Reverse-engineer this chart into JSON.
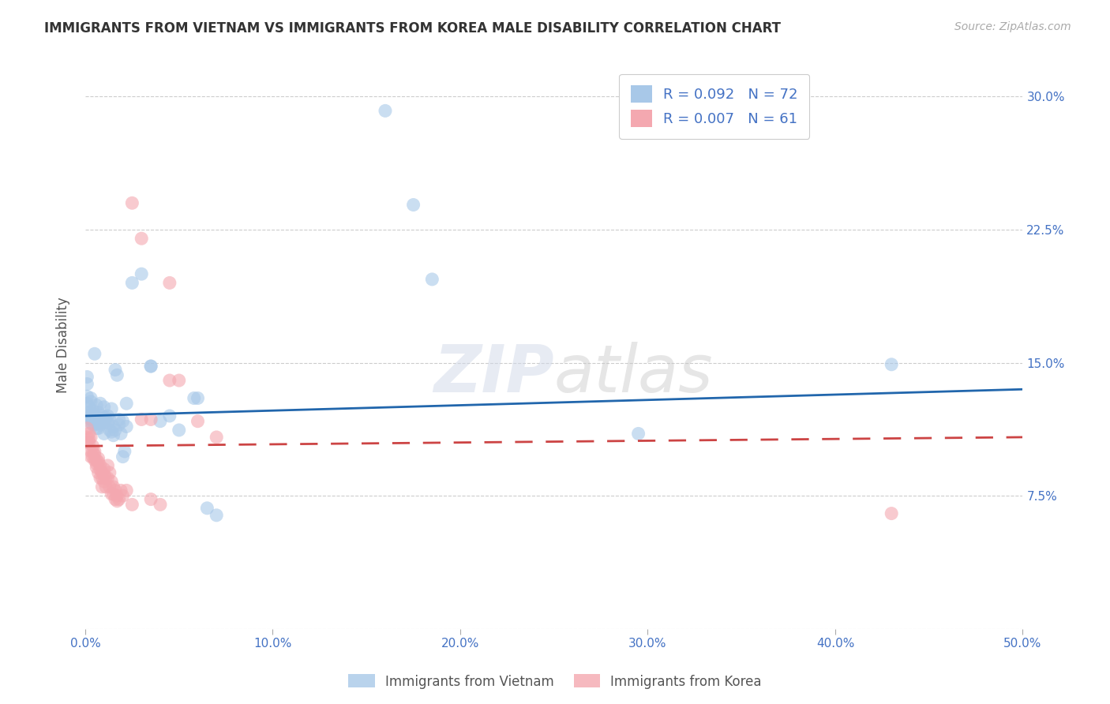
{
  "title": "IMMIGRANTS FROM VIETNAM VS IMMIGRANTS FROM KOREA MALE DISABILITY CORRELATION CHART",
  "source": "Source: ZipAtlas.com",
  "ylabel": "Male Disability",
  "xlabel": "",
  "xlim": [
    0.0,
    0.5
  ],
  "ylim": [
    0.0,
    0.32
  ],
  "xticks": [
    0.0,
    0.1,
    0.2,
    0.3,
    0.4,
    0.5
  ],
  "yticks": [
    0.0,
    0.075,
    0.15,
    0.225,
    0.3
  ],
  "xticklabels": [
    "0.0%",
    "10.0%",
    "20.0%",
    "30.0%",
    "40.0%",
    "50.0%"
  ],
  "yticklabels": [
    "",
    "7.5%",
    "15.0%",
    "22.5%",
    "30.0%"
  ],
  "vietnam_color": "#a8c8e8",
  "korea_color": "#f4a8b0",
  "vietnam_line_color": "#2166ac",
  "korea_line_color": "#cc4444",
  "watermark": "ZIPatlas",
  "vietnam_line_start_y": 0.12,
  "vietnam_line_end_y": 0.135,
  "korea_line_start_y": 0.103,
  "korea_line_end_y": 0.108,
  "vietnam_points": [
    [
      0.001,
      0.131
    ],
    [
      0.001,
      0.127
    ],
    [
      0.001,
      0.138
    ],
    [
      0.001,
      0.142
    ],
    [
      0.002,
      0.12
    ],
    [
      0.002,
      0.125
    ],
    [
      0.002,
      0.119
    ],
    [
      0.002,
      0.122
    ],
    [
      0.003,
      0.13
    ],
    [
      0.003,
      0.118
    ],
    [
      0.003,
      0.116
    ],
    [
      0.003,
      0.128
    ],
    [
      0.004,
      0.123
    ],
    [
      0.004,
      0.115
    ],
    [
      0.004,
      0.118
    ],
    [
      0.004,
      0.121
    ],
    [
      0.005,
      0.119
    ],
    [
      0.005,
      0.155
    ],
    [
      0.005,
      0.12
    ],
    [
      0.005,
      0.115
    ],
    [
      0.006,
      0.126
    ],
    [
      0.006,
      0.118
    ],
    [
      0.006,
      0.113
    ],
    [
      0.006,
      0.117
    ],
    [
      0.007,
      0.122
    ],
    [
      0.007,
      0.113
    ],
    [
      0.007,
      0.119
    ],
    [
      0.008,
      0.116
    ],
    [
      0.008,
      0.127
    ],
    [
      0.008,
      0.115
    ],
    [
      0.009,
      0.12
    ],
    [
      0.009,
      0.117
    ],
    [
      0.01,
      0.11
    ],
    [
      0.01,
      0.118
    ],
    [
      0.01,
      0.125
    ],
    [
      0.011,
      0.119
    ],
    [
      0.011,
      0.117
    ],
    [
      0.012,
      0.116
    ],
    [
      0.012,
      0.12
    ],
    [
      0.013,
      0.112
    ],
    [
      0.013,
      0.118
    ],
    [
      0.014,
      0.111
    ],
    [
      0.014,
      0.124
    ],
    [
      0.015,
      0.114
    ],
    [
      0.015,
      0.109
    ],
    [
      0.016,
      0.112
    ],
    [
      0.016,
      0.146
    ],
    [
      0.017,
      0.143
    ],
    [
      0.018,
      0.118
    ],
    [
      0.018,
      0.115
    ],
    [
      0.019,
      0.11
    ],
    [
      0.02,
      0.117
    ],
    [
      0.02,
      0.097
    ],
    [
      0.021,
      0.1
    ],
    [
      0.022,
      0.114
    ],
    [
      0.022,
      0.127
    ],
    [
      0.025,
      0.195
    ],
    [
      0.03,
      0.2
    ],
    [
      0.035,
      0.148
    ],
    [
      0.035,
      0.148
    ],
    [
      0.04,
      0.117
    ],
    [
      0.045,
      0.12
    ],
    [
      0.05,
      0.112
    ],
    [
      0.058,
      0.13
    ],
    [
      0.06,
      0.13
    ],
    [
      0.065,
      0.068
    ],
    [
      0.07,
      0.064
    ],
    [
      0.16,
      0.292
    ],
    [
      0.175,
      0.239
    ],
    [
      0.185,
      0.197
    ],
    [
      0.295,
      0.11
    ],
    [
      0.43,
      0.149
    ]
  ],
  "korea_points": [
    [
      0.001,
      0.113
    ],
    [
      0.001,
      0.108
    ],
    [
      0.001,
      0.105
    ],
    [
      0.002,
      0.11
    ],
    [
      0.002,
      0.107
    ],
    [
      0.002,
      0.105
    ],
    [
      0.003,
      0.1
    ],
    [
      0.003,
      0.097
    ],
    [
      0.003,
      0.108
    ],
    [
      0.004,
      0.1
    ],
    [
      0.004,
      0.103
    ],
    [
      0.004,
      0.097
    ],
    [
      0.005,
      0.1
    ],
    [
      0.005,
      0.095
    ],
    [
      0.005,
      0.098
    ],
    [
      0.006,
      0.093
    ],
    [
      0.006,
      0.095
    ],
    [
      0.006,
      0.091
    ],
    [
      0.007,
      0.096
    ],
    [
      0.007,
      0.088
    ],
    [
      0.007,
      0.094
    ],
    [
      0.008,
      0.09
    ],
    [
      0.008,
      0.085
    ],
    [
      0.008,
      0.092
    ],
    [
      0.009,
      0.088
    ],
    [
      0.009,
      0.085
    ],
    [
      0.009,
      0.08
    ],
    [
      0.01,
      0.09
    ],
    [
      0.01,
      0.087
    ],
    [
      0.01,
      0.083
    ],
    [
      0.011,
      0.085
    ],
    [
      0.011,
      0.08
    ],
    [
      0.012,
      0.092
    ],
    [
      0.012,
      0.085
    ],
    [
      0.013,
      0.088
    ],
    [
      0.013,
      0.08
    ],
    [
      0.014,
      0.076
    ],
    [
      0.014,
      0.083
    ],
    [
      0.015,
      0.08
    ],
    [
      0.015,
      0.076
    ],
    [
      0.016,
      0.073
    ],
    [
      0.016,
      0.078
    ],
    [
      0.017,
      0.075
    ],
    [
      0.017,
      0.072
    ],
    [
      0.018,
      0.073
    ],
    [
      0.019,
      0.078
    ],
    [
      0.02,
      0.075
    ],
    [
      0.022,
      0.078
    ],
    [
      0.025,
      0.07
    ],
    [
      0.03,
      0.118
    ],
    [
      0.035,
      0.118
    ],
    [
      0.035,
      0.073
    ],
    [
      0.04,
      0.07
    ],
    [
      0.045,
      0.14
    ],
    [
      0.025,
      0.24
    ],
    [
      0.03,
      0.22
    ],
    [
      0.045,
      0.195
    ],
    [
      0.05,
      0.14
    ],
    [
      0.06,
      0.117
    ],
    [
      0.07,
      0.108
    ],
    [
      0.43,
      0.065
    ]
  ]
}
